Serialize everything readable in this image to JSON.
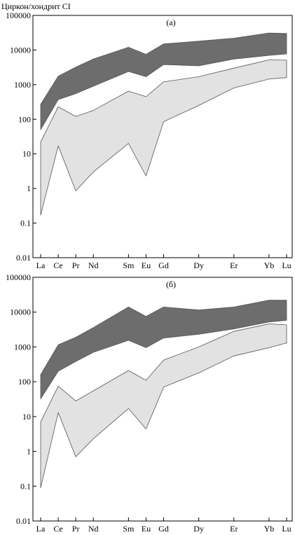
{
  "ylabel": "Циркон/хондрит CI",
  "colors": {
    "dark_band": "#6d6d6d",
    "light_band": "#e2e2e2",
    "outline": "#555555"
  },
  "chart_data": [
    {
      "type": "area",
      "panel_label": "(a)",
      "yscale": "log",
      "ylim": [
        0.01,
        100000
      ],
      "yticks": [
        0.01,
        0.1,
        1,
        10,
        100,
        1000,
        10000,
        100000
      ],
      "ytick_labels": [
        "0.01",
        "0.1",
        "1",
        "10",
        "100",
        "1000",
        "10000",
        "100000"
      ],
      "categories": [
        "La",
        "Ce",
        "Pr",
        "Nd",
        "Sm",
        "Eu",
        "Gd",
        "Dy",
        "Er",
        "Yb",
        "Lu"
      ],
      "bands": [
        {
          "style": "dark",
          "upper": [
            270,
            1750,
            3200,
            5500,
            12000,
            7500,
            15000,
            18000,
            22000,
            31000,
            30000
          ],
          "lower": [
            50,
            370,
            550,
            900,
            2400,
            1700,
            3800,
            3500,
            5500,
            7000,
            7700
          ]
        },
        {
          "style": "light",
          "upper": [
            22,
            230,
            120,
            180,
            650,
            450,
            1200,
            1700,
            3000,
            5200,
            5100
          ],
          "lower": [
            0.17,
            17,
            0.85,
            3,
            20,
            2.3,
            85,
            250,
            800,
            1450,
            1600
          ]
        }
      ]
    },
    {
      "type": "area",
      "panel_label": "(б)",
      "yscale": "log",
      "ylim": [
        0.01,
        100000
      ],
      "yticks": [
        0.01,
        0.1,
        1,
        10,
        100,
        1000,
        10000,
        100000
      ],
      "ytick_labels": [
        "0.01",
        "0.1",
        "1",
        "10",
        "100",
        "1000",
        "10000",
        "100000"
      ],
      "categories": [
        "La",
        "Ce",
        "Pr",
        "Nd",
        "Sm",
        "Eu",
        "Gd",
        "Dy",
        "Er",
        "Yb",
        "Lu"
      ],
      "bands": [
        {
          "style": "dark",
          "upper": [
            160,
            1150,
            1900,
            3600,
            14000,
            7500,
            14000,
            11500,
            14000,
            22000,
            22000
          ],
          "lower": [
            32,
            200,
            380,
            700,
            1550,
            950,
            1800,
            2300,
            3300,
            5200,
            5800
          ]
        },
        {
          "style": "light",
          "upper": [
            7,
            75,
            28,
            55,
            210,
            110,
            420,
            1000,
            2800,
            4600,
            4300
          ],
          "lower": [
            0.09,
            13,
            0.7,
            2.3,
            17,
            4.4,
            70,
            180,
            550,
            950,
            1300
          ]
        }
      ]
    }
  ]
}
